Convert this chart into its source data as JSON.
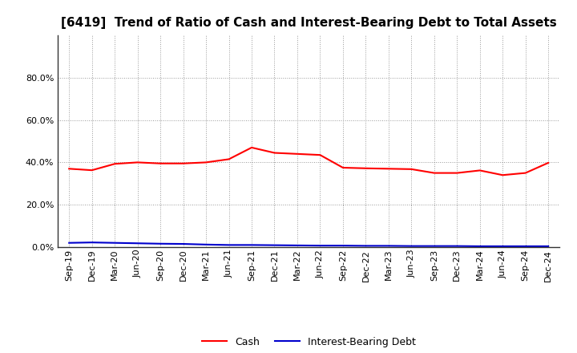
{
  "title": "[6419]  Trend of Ratio of Cash and Interest-Bearing Debt to Total Assets",
  "x_labels": [
    "Sep-19",
    "Dec-19",
    "Mar-20",
    "Jun-20",
    "Sep-20",
    "Dec-20",
    "Mar-21",
    "Jun-21",
    "Sep-21",
    "Dec-21",
    "Mar-22",
    "Jun-22",
    "Sep-22",
    "Dec-22",
    "Mar-23",
    "Jun-23",
    "Sep-23",
    "Dec-23",
    "Mar-24",
    "Jun-24",
    "Sep-24",
    "Dec-24"
  ],
  "cash": [
    0.37,
    0.363,
    0.393,
    0.4,
    0.395,
    0.395,
    0.4,
    0.415,
    0.47,
    0.445,
    0.44,
    0.435,
    0.375,
    0.372,
    0.37,
    0.368,
    0.35,
    0.35,
    0.362,
    0.34,
    0.35,
    0.398
  ],
  "interest_bearing_debt": [
    0.02,
    0.022,
    0.02,
    0.018,
    0.016,
    0.015,
    0.012,
    0.01,
    0.01,
    0.009,
    0.008,
    0.007,
    0.007,
    0.006,
    0.006,
    0.005,
    0.005,
    0.005,
    0.004,
    0.004,
    0.004,
    0.004
  ],
  "cash_color": "#ff0000",
  "debt_color": "#0000cd",
  "background_color": "#ffffff",
  "grid_color": "#999999",
  "ylim": [
    0.0,
    1.0
  ],
  "yticks": [
    0.0,
    0.2,
    0.4,
    0.6,
    0.8
  ],
  "legend_labels": [
    "Cash",
    "Interest-Bearing Debt"
  ],
  "title_fontsize": 11,
  "tick_fontsize": 8,
  "legend_fontsize": 9
}
